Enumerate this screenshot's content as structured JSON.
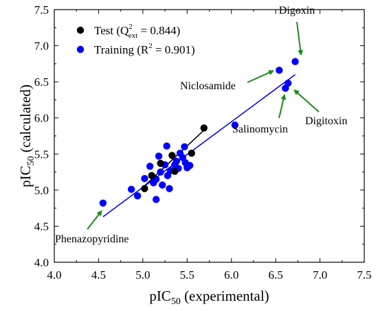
{
  "chart_data": {
    "type": "scatter",
    "xlabel": {
      "main": "pIC",
      "sub": "50",
      "rest": " (experimental)"
    },
    "ylabel": {
      "main": "pIC",
      "sub": "50",
      "rest": " (calculated)"
    },
    "xlim": [
      4.0,
      7.5
    ],
    "ylim": [
      4.0,
      7.5
    ],
    "xticks": [
      "4.0",
      "4.5",
      "5.0",
      "5.5",
      "6.0",
      "6.5",
      "7.0",
      "7.5"
    ],
    "yticks": [
      "4.0",
      "4.5",
      "5.0",
      "5.5",
      "6.0",
      "6.5",
      "7.0",
      "7.5"
    ],
    "grid": false,
    "legend": {
      "position": "top-left",
      "entries": [
        {
          "series": "test",
          "pre": "Test (Q",
          "sup": "2",
          "sub": "ext",
          "post": " = 0.844)"
        },
        {
          "series": "training",
          "pre": "Training (R",
          "sup": "2",
          "sub": "",
          "post": " = 0.901)"
        }
      ]
    },
    "series": [
      {
        "name": "Test",
        "color": "#000000",
        "points": [
          [
            5.02,
            5.02
          ],
          [
            5.1,
            5.2
          ],
          [
            5.2,
            5.37
          ],
          [
            5.33,
            5.48
          ],
          [
            5.36,
            5.26
          ],
          [
            5.55,
            5.51
          ],
          [
            5.69,
            5.86
          ]
        ],
        "fit_line": [
          [
            5.02,
            5.06
          ],
          [
            5.69,
            5.83
          ]
        ]
      },
      {
        "name": "Training",
        "color": "#0000ff",
        "points": [
          [
            4.55,
            4.82
          ],
          [
            4.87,
            5.01
          ],
          [
            4.94,
            4.92
          ],
          [
            5.02,
            5.16
          ],
          [
            5.08,
            5.33
          ],
          [
            5.12,
            5.1
          ],
          [
            5.15,
            4.87
          ],
          [
            5.15,
            5.15
          ],
          [
            5.18,
            5.47
          ],
          [
            5.2,
            5.25
          ],
          [
            5.22,
            5.07
          ],
          [
            5.25,
            5.35
          ],
          [
            5.27,
            5.61
          ],
          [
            5.28,
            5.2
          ],
          [
            5.3,
            5.02
          ],
          [
            5.31,
            5.27
          ],
          [
            5.36,
            5.35
          ],
          [
            5.38,
            5.4
          ],
          [
            5.4,
            5.3
          ],
          [
            5.42,
            5.51
          ],
          [
            5.45,
            5.45
          ],
          [
            5.47,
            5.6
          ],
          [
            5.48,
            5.38
          ],
          [
            5.5,
            5.31
          ],
          [
            5.53,
            5.34
          ],
          [
            6.04,
            5.9
          ],
          [
            6.54,
            6.66
          ],
          [
            6.61,
            6.41
          ],
          [
            6.64,
            6.48
          ],
          [
            6.72,
            6.78
          ]
        ],
        "fit_line": [
          [
            4.55,
            4.63
          ],
          [
            6.72,
            6.6
          ]
        ]
      }
    ],
    "annotations": [
      {
        "text": "Digoxin",
        "target": [
          6.72,
          6.78
        ]
      },
      {
        "text": "Niclosamide",
        "target": [
          6.54,
          6.66
        ]
      },
      {
        "text": "Digitoxin",
        "target": [
          6.64,
          6.48
        ]
      },
      {
        "text": "Salinomycin",
        "target": [
          6.61,
          6.41
        ]
      },
      {
        "text": "Phenazopyridine",
        "target": [
          4.55,
          4.82
        ]
      }
    ],
    "annotation_arrow_color": "#1a8a1a"
  }
}
